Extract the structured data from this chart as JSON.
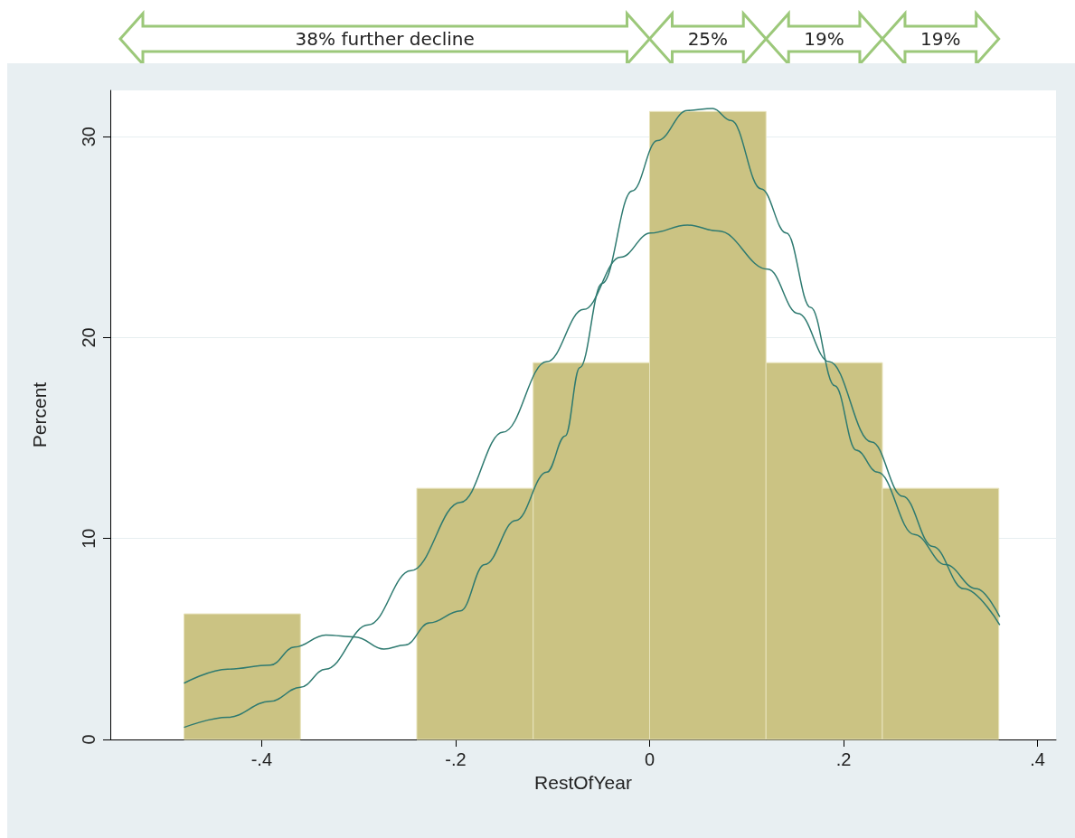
{
  "chart_data": {
    "type": "histogram",
    "xlabel": "RestOfYear",
    "ylabel": "Percent",
    "annotations": [
      "38% further decline",
      "25%",
      "19%",
      "19%"
    ],
    "bins": [
      -0.48,
      -0.36,
      -0.24,
      -0.12,
      0,
      0.12,
      0.24,
      0.36
    ],
    "series": [
      {
        "type": "histogram",
        "color": "#cbc383",
        "values": [
          6.25,
          0,
          12.5,
          18.75,
          31.25,
          18.75,
          12.5
        ]
      },
      {
        "type": "line",
        "color": "#2e7a70",
        "x": [
          -0.48,
          -0.435,
          -0.391,
          -0.366,
          -0.334,
          -0.303,
          -0.274,
          -0.252,
          -0.227,
          -0.195,
          -0.17,
          -0.138,
          -0.106,
          -0.087,
          -0.072,
          -0.049,
          -0.018,
          0.008,
          0.039,
          0.065,
          0.084,
          0.115,
          0.141,
          0.166,
          0.191,
          0.213,
          0.235,
          0.273,
          0.305,
          0.337,
          0.361
        ],
        "values": [
          2.8,
          3.5,
          3.7,
          4.6,
          5.2,
          5.1,
          4.5,
          4.7,
          5.8,
          6.4,
          8.7,
          10.9,
          13.3,
          15.1,
          18.5,
          22.7,
          27.3,
          29.8,
          31.3,
          31.4,
          30.8,
          27.4,
          25.2,
          21.5,
          17.6,
          14.4,
          13.3,
          10.2,
          8.7,
          7.5,
          6.1
        ]
      },
      {
        "type": "line",
        "color": "#2e7a70",
        "x": [
          -0.48,
          -0.435,
          -0.391,
          -0.36,
          -0.334,
          -0.29,
          -0.246,
          -0.195,
          -0.151,
          -0.106,
          -0.068,
          -0.03,
          0.001,
          0.039,
          0.071,
          0.122,
          0.153,
          0.185,
          0.229,
          0.261,
          0.292,
          0.324,
          0.361
        ],
        "values": [
          0.6,
          1.1,
          1.9,
          2.6,
          3.5,
          5.7,
          8.4,
          11.8,
          15.3,
          18.8,
          21.4,
          24,
          25.2,
          25.6,
          25.3,
          23.4,
          21.2,
          18.8,
          14.8,
          12.1,
          9.6,
          7.5,
          5.7
        ]
      }
    ],
    "xlim": [
      -0.556,
      0.419
    ],
    "ylim": [
      0,
      32.3
    ],
    "xticks": [
      {
        "value": -0.4,
        "label": "-.4"
      },
      {
        "value": -0.2,
        "label": "-.2"
      },
      0,
      {
        "value": 0.2,
        "label": ".2"
      },
      {
        "value": 0.4,
        "label": ".4"
      }
    ],
    "yticks": [
      0,
      10,
      20,
      30
    ],
    "grid": "y",
    "marker": "none",
    "line_style": "solid"
  }
}
